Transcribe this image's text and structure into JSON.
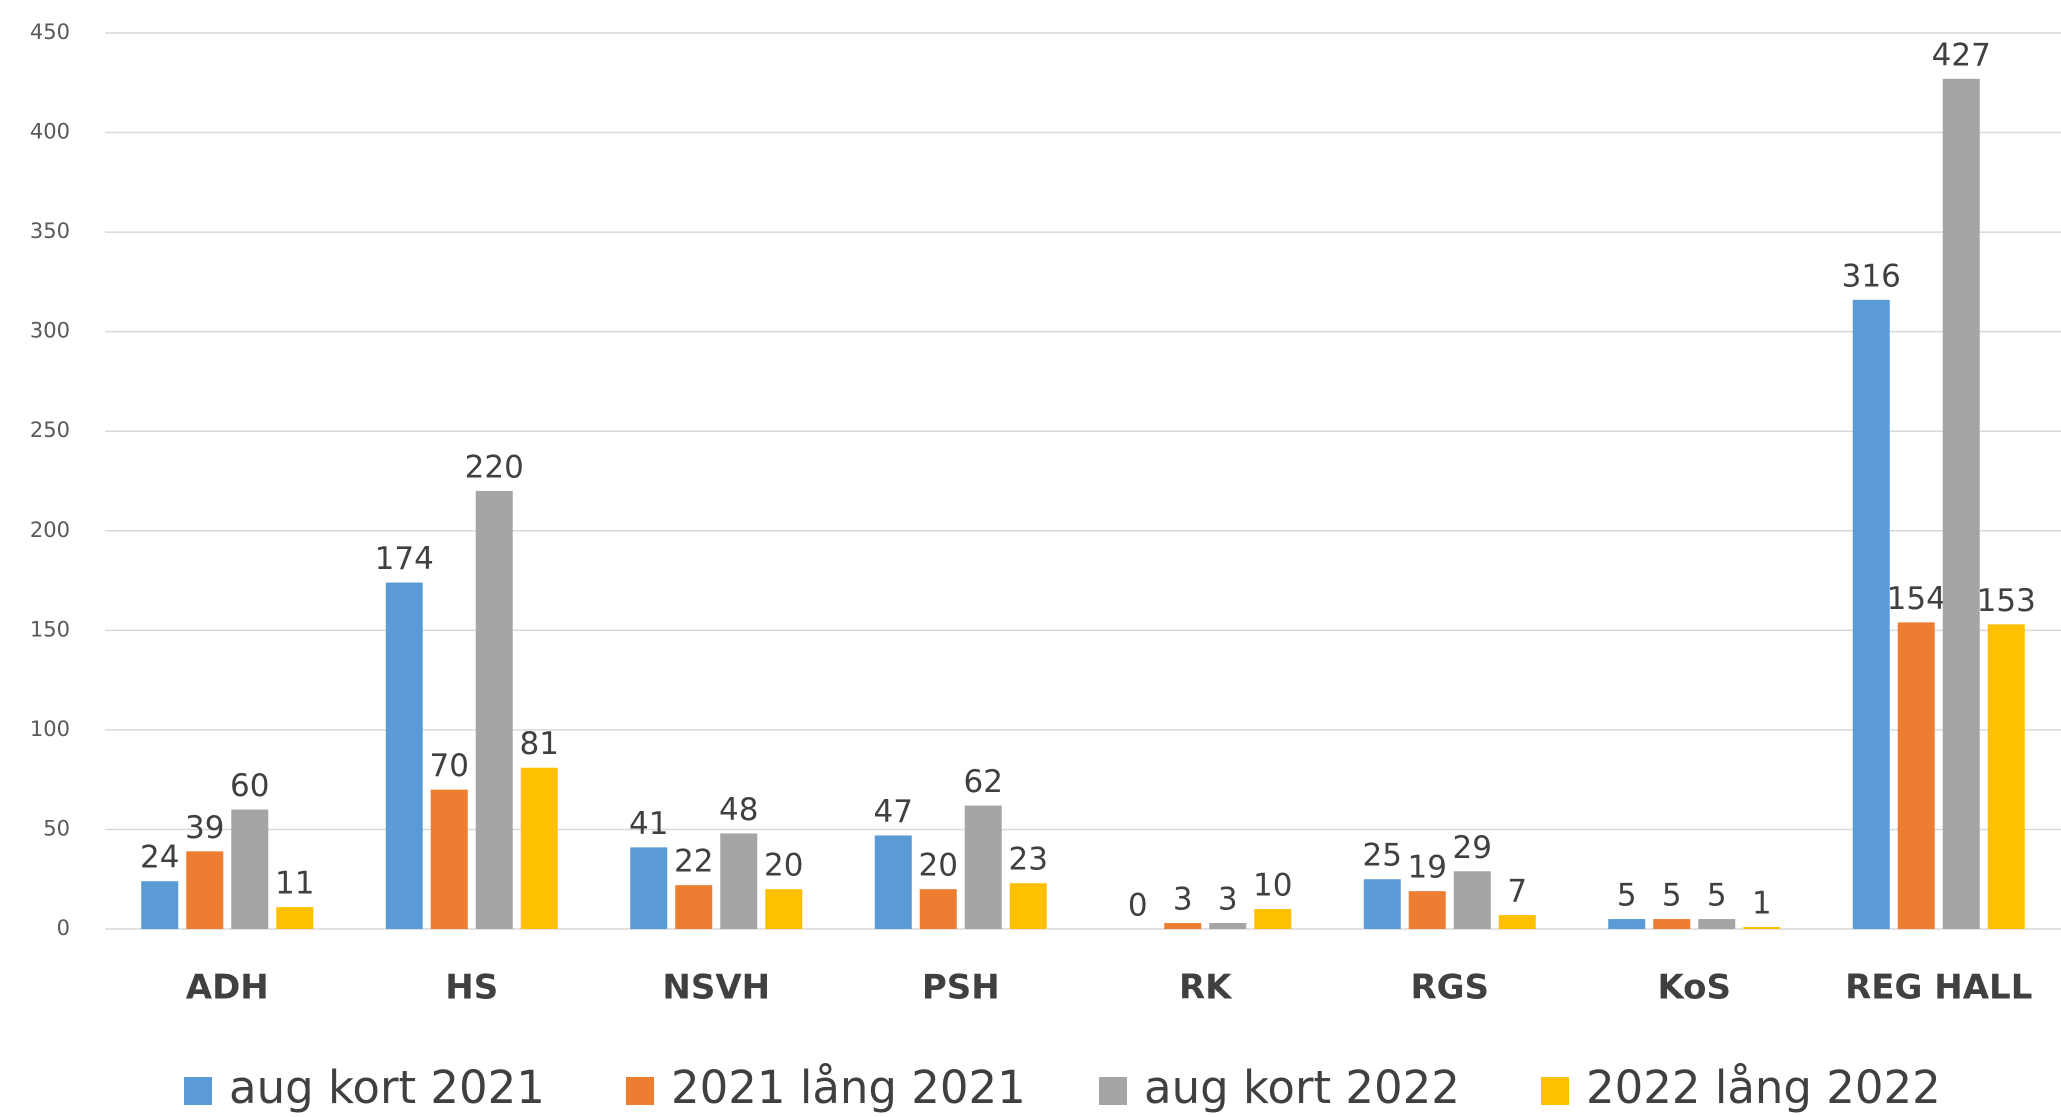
{
  "chart_data": {
    "type": "bar",
    "categories": [
      "ADH",
      "HS",
      "NSVH",
      "PSH",
      "RK",
      "RGS",
      "KoS",
      "REG HALL"
    ],
    "series": [
      {
        "name": "aug kort 2021",
        "color": "#5b9bd5",
        "values": [
          24,
          174,
          41,
          47,
          0,
          25,
          5,
          316
        ]
      },
      {
        "name": "2021 lång 2021",
        "color": "#ed7d31",
        "values": [
          39,
          70,
          22,
          20,
          3,
          19,
          5,
          154
        ]
      },
      {
        "name": "aug kort 2022",
        "color": "#a5a5a5",
        "values": [
          60,
          220,
          48,
          62,
          3,
          29,
          5,
          427
        ]
      },
      {
        "name": "2022 lång 2022",
        "color": "#ffc000",
        "values": [
          11,
          81,
          20,
          23,
          10,
          7,
          1,
          153
        ]
      }
    ],
    "ylim": [
      0,
      450
    ],
    "yticks": [
      0,
      50,
      100,
      150,
      200,
      250,
      300,
      350,
      400,
      450
    ],
    "grid": true,
    "legend": "bottom"
  }
}
